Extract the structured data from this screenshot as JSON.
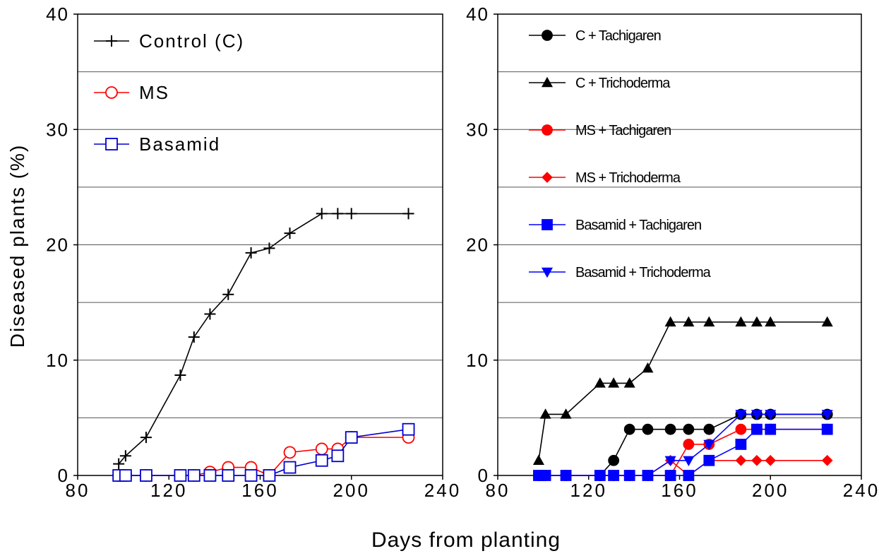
{
  "figure": {
    "ylabel": "Diseased plants (%)",
    "xlabel": "Days from planting"
  },
  "chart_data": [
    {
      "type": "line",
      "xlim": [
        80,
        240
      ],
      "ylim": [
        0,
        40
      ],
      "xticks": [
        80,
        120,
        160,
        200,
        240
      ],
      "yticks": [
        0,
        10,
        20,
        30,
        40
      ],
      "grid": "horizontal",
      "legend_position": "top-left",
      "series": [
        {
          "name": "Control (C)",
          "color": "#000000",
          "marker": "plus",
          "fill": "none",
          "x": [
            98,
            101,
            110,
            125,
            131,
            138,
            146,
            156,
            164,
            173,
            187,
            194,
            200,
            225
          ],
          "y": [
            1.0,
            1.7,
            3.3,
            8.7,
            12.0,
            14.0,
            15.7,
            19.3,
            19.7,
            21.0,
            22.7,
            22.7,
            22.7,
            22.7
          ]
        },
        {
          "name": "MS",
          "color": "#ff0000",
          "marker": "circle",
          "fill": "none",
          "x": [
            98,
            101,
            110,
            125,
            131,
            138,
            146,
            156,
            164,
            173,
            187,
            194,
            200,
            225
          ],
          "y": [
            0,
            0,
            0,
            0,
            0,
            0.3,
            0.7,
            0.7,
            0,
            2.0,
            2.3,
            2.3,
            3.3,
            3.3
          ]
        },
        {
          "name": "Basamid",
          "color": "#0000cc",
          "marker": "square",
          "fill": "none",
          "x": [
            98,
            101,
            110,
            125,
            131,
            138,
            146,
            156,
            164,
            173,
            187,
            194,
            200,
            225
          ],
          "y": [
            0,
            0,
            0,
            0,
            0,
            0,
            0,
            0,
            0,
            0.7,
            1.3,
            1.7,
            3.3,
            4.0
          ]
        }
      ]
    },
    {
      "type": "line",
      "xlim": [
        80,
        240
      ],
      "ylim": [
        0,
        40
      ],
      "xticks": [
        80,
        120,
        160,
        200,
        240
      ],
      "yticks": [
        0,
        10,
        20,
        30,
        40
      ],
      "grid": "horizontal",
      "legend_position": "top-left",
      "series": [
        {
          "name": "C + Tachigaren",
          "color": "#000000",
          "marker": "circle",
          "fill": "filled",
          "x": [
            98,
            101,
            110,
            125,
            131,
            138,
            146,
            156,
            164,
            173,
            187,
            194,
            200,
            225
          ],
          "y": [
            0,
            0,
            0,
            0,
            1.3,
            4.0,
            4.0,
            4.0,
            4.0,
            4.0,
            5.3,
            5.3,
            5.3,
            5.3
          ]
        },
        {
          "name": "C + Trichoderma",
          "color": "#000000",
          "marker": "triangle-up",
          "fill": "filled",
          "x": [
            98,
            101,
            110,
            125,
            131,
            138,
            146,
            156,
            164,
            173,
            187,
            194,
            200,
            225
          ],
          "y": [
            1.3,
            5.3,
            5.3,
            8.0,
            8.0,
            8.0,
            9.3,
            13.3,
            13.3,
            13.3,
            13.3,
            13.3,
            13.3,
            13.3
          ]
        },
        {
          "name": "MS + Tachigaren",
          "color": "#ff0000",
          "marker": "circle",
          "fill": "filled",
          "x": [
            98,
            101,
            110,
            125,
            131,
            138,
            146,
            156,
            164,
            173,
            187,
            194,
            200,
            225
          ],
          "y": [
            0,
            0,
            0,
            0,
            0,
            0,
            0,
            0,
            2.7,
            2.7,
            4.0,
            4.0,
            4.0,
            4.0
          ]
        },
        {
          "name": "MS + Trichoderma",
          "color": "#ff0000",
          "marker": "diamond",
          "fill": "filled",
          "x": [
            98,
            101,
            110,
            125,
            131,
            138,
            146,
            156,
            164,
            173,
            187,
            194,
            200,
            225
          ],
          "y": [
            0,
            0,
            0,
            0,
            0,
            0,
            0,
            1.3,
            0,
            1.3,
            1.3,
            1.3,
            1.3,
            1.3
          ]
        },
        {
          "name": "Basamid + Tachigaren",
          "color": "#0000ff",
          "marker": "square",
          "fill": "filled",
          "x": [
            98,
            101,
            110,
            125,
            131,
            138,
            146,
            156,
            164,
            173,
            187,
            194,
            200,
            225
          ],
          "y": [
            0,
            0,
            0,
            0,
            0,
            0,
            0,
            0,
            0,
            1.3,
            2.7,
            4.0,
            4.0,
            4.0
          ]
        },
        {
          "name": "Basamid + Trichoderma",
          "color": "#0000ff",
          "marker": "triangle-down",
          "fill": "filled",
          "x": [
            98,
            101,
            110,
            125,
            131,
            138,
            146,
            156,
            164,
            173,
            187,
            194,
            200,
            225
          ],
          "y": [
            0,
            0,
            0,
            0,
            0,
            0,
            0,
            1.3,
            1.3,
            2.7,
            5.3,
            5.3,
            5.3,
            5.3
          ]
        }
      ]
    }
  ]
}
